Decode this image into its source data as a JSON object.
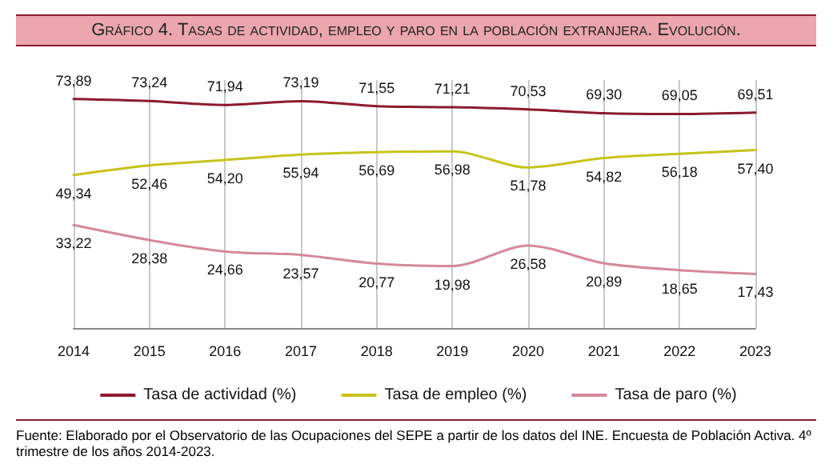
{
  "chart_data": {
    "type": "line",
    "title": "Gráfico 4. Tasas de actividad, empleo y paro en la población extranjera. Evolución.",
    "categories": [
      "2014",
      "2015",
      "2016",
      "2017",
      "2018",
      "2019",
      "2020",
      "2021",
      "2022",
      "2023"
    ],
    "series": [
      {
        "name": "Tasa de actividad (%)",
        "color": "#8c1a2e",
        "values": [
          73.89,
          73.24,
          71.94,
          73.19,
          71.55,
          71.21,
          70.53,
          69.3,
          69.05,
          69.51
        ],
        "value_labels": [
          "73,89",
          "73,24",
          "71,94",
          "73,19",
          "71,55",
          "71,21",
          "70,53",
          "69,30",
          "69,05",
          "69,51"
        ]
      },
      {
        "name": "Tasa de empleo (%)",
        "color": "#c8c31a",
        "values": [
          49.34,
          52.46,
          54.2,
          55.94,
          56.69,
          56.98,
          51.78,
          54.82,
          56.18,
          57.4
        ],
        "value_labels": [
          "49,34",
          "52,46",
          "54,20",
          "55,94",
          "56,69",
          "56,98",
          "51,78",
          "54,82",
          "56,18",
          "57,40"
        ]
      },
      {
        "name": "Tasa de paro (%)",
        "color": "#d4899a",
        "values": [
          33.22,
          28.38,
          24.66,
          23.57,
          20.77,
          19.98,
          26.58,
          20.89,
          18.65,
          17.43
        ],
        "value_labels": [
          "33,22",
          "28,38",
          "24,66",
          "23,57",
          "20,77",
          "19,98",
          "26,58",
          "20,89",
          "18,65",
          "17,43"
        ]
      }
    ],
    "grid": "x",
    "legend": "bottom",
    "annotations": [
      "Fuente: Elaborado por el Observatorio de las Ocupaciones del SEPE a partir de los datos del INE. Encuesta de Población Activa. 4º trimestre de los años 2014-2023."
    ]
  }
}
